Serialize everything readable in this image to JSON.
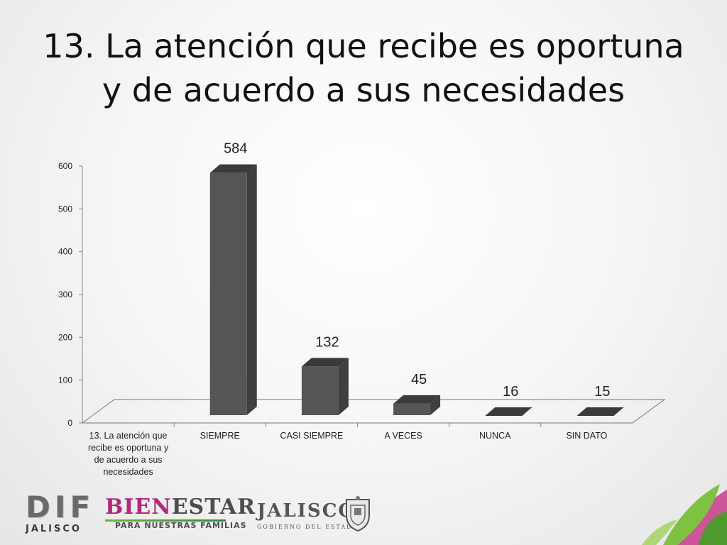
{
  "title": {
    "line1": "13. La atención que recibe es oportuna",
    "line2": "y de acuerdo a sus necesidades"
  },
  "chart_data": {
    "type": "bar",
    "title": "",
    "xlabel": "",
    "ylabel": "",
    "categories": [
      "13. La atención que recibe es oportuna y de acuerdo a sus necesidades",
      "SIEMPRE",
      "CASI SIEMPRE",
      "A VECES",
      "NUNCA",
      "SIN DATO"
    ],
    "category_lines": [
      [
        "13. La atención que",
        "recibe es oportuna y",
        "de acuerdo a sus",
        "necesidades"
      ],
      [
        "SIEMPRE"
      ],
      [
        "CASI SIEMPRE"
      ],
      [
        "A VECES"
      ],
      [
        "NUNCA"
      ],
      [
        "SIN DATO"
      ]
    ],
    "values": [
      null,
      584,
      132,
      45,
      16,
      15
    ],
    "data_labels": [
      "",
      "584",
      "132",
      "45",
      "16",
      "15"
    ],
    "ylim": [
      0,
      600
    ],
    "yticks": [
      0,
      100,
      200,
      300,
      400,
      500,
      600
    ],
    "grid": false,
    "legend": "none",
    "bar_color": "#555555",
    "bar_top_color": "#3a3a3a",
    "bar_side_color": "#3f3f3f"
  },
  "footer": {
    "dif": {
      "big": "DIF",
      "small": "JALISCO"
    },
    "bienestar": {
      "part1": "BIEN",
      "part2": "ESTAR",
      "tagline": "PARA NUESTRAS FAMILIAS"
    },
    "jalisco": {
      "big": "JALISCO",
      "small": "GOBIERNO DEL ESTADO"
    }
  }
}
